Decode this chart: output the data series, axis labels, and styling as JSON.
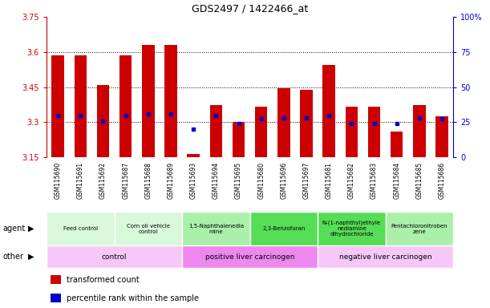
{
  "title": "GDS2497 / 1422466_at",
  "samples": [
    "GSM115690",
    "GSM115691",
    "GSM115692",
    "GSM115687",
    "GSM115688",
    "GSM115689",
    "GSM115693",
    "GSM115694",
    "GSM115695",
    "GSM115680",
    "GSM115696",
    "GSM115697",
    "GSM115681",
    "GSM115682",
    "GSM115683",
    "GSM115684",
    "GSM115685",
    "GSM115686"
  ],
  "transformed_count": [
    3.585,
    3.585,
    3.46,
    3.585,
    3.63,
    3.63,
    3.165,
    3.375,
    3.3,
    3.365,
    3.445,
    3.44,
    3.545,
    3.365,
    3.365,
    3.26,
    3.375,
    3.325
  ],
  "percentile_values": [
    3.33,
    3.33,
    3.305,
    3.33,
    3.335,
    3.335,
    3.27,
    3.33,
    3.295,
    3.315,
    3.32,
    3.32,
    3.33,
    3.295,
    3.295,
    3.295,
    3.32,
    3.315
  ],
  "ymin": 3.15,
  "ymax": 3.75,
  "yticks": [
    3.15,
    3.3,
    3.45,
    3.6,
    3.75
  ],
  "ytick_labels": [
    "3.15",
    "3.3",
    "3.45",
    "3.6",
    "3.75"
  ],
  "right_yticks": [
    0,
    25,
    50,
    75,
    100
  ],
  "right_ytick_labels": [
    "0",
    "25",
    "50",
    "75",
    "100%"
  ],
  "hgrid_lines": [
    3.3,
    3.45,
    3.6
  ],
  "agent_groups": [
    {
      "label": "Feed control",
      "start": 0,
      "end": 3,
      "color": "#d9f7d9"
    },
    {
      "label": "Corn oil vehicle\ncontrol",
      "start": 3,
      "end": 6,
      "color": "#d9f7d9"
    },
    {
      "label": "1,5-Naphthalenedia\nmine",
      "start": 6,
      "end": 9,
      "color": "#aaf0aa"
    },
    {
      "label": "2,3-Benzofuran",
      "start": 9,
      "end": 12,
      "color": "#55dd55"
    },
    {
      "label": "N-(1-naphthyl)ethyle\nnediamine\ndihydrochloride",
      "start": 12,
      "end": 15,
      "color": "#55dd55"
    },
    {
      "label": "Pentachloronitroben\nzene",
      "start": 15,
      "end": 18,
      "color": "#aaf0aa"
    }
  ],
  "other_groups": [
    {
      "label": "control",
      "start": 0,
      "end": 6,
      "color": "#f7c8f7"
    },
    {
      "label": "positive liver carcinogen",
      "start": 6,
      "end": 12,
      "color": "#ee88ee"
    },
    {
      "label": "negative liver carcinogen",
      "start": 12,
      "end": 18,
      "color": "#f7c8f7"
    }
  ],
  "bar_color": "#cc0000",
  "dot_color": "#0000cc",
  "left_axis_color": "#cc0000",
  "right_axis_color": "#0000cc",
  "xtick_bg_color": "#cccccc",
  "fig_width": 6.11,
  "fig_height": 3.84,
  "dpi": 100
}
